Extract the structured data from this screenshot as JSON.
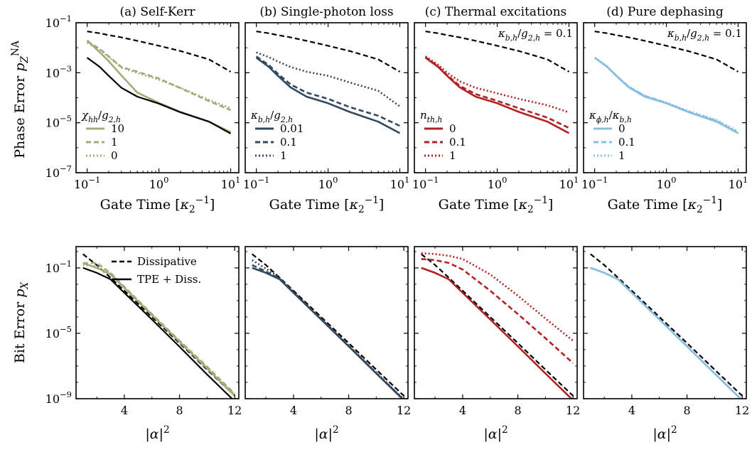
{
  "colors": {
    "black": "#000000",
    "self_kerr": "#a3ab78",
    "single_photon_loss": "#34495e",
    "thermal": "#b22222",
    "dephasing": "#88bfe0"
  },
  "row_labels": {
    "top_y": "Phase Error p_Z^NA",
    "top_x": "Gate Time [κ₂⁻¹]",
    "bottom_y": "Bit Error p_X",
    "bottom_x": "|α|²"
  },
  "chart_data": [
    {
      "type": "line",
      "title": "(a) Self-Kerr",
      "xlabel": "Gate Time [κ₂⁻¹]",
      "ylabel": "Phase Error p_Z^NA",
      "xscale": "log",
      "yscale": "log",
      "xlim": [
        0.07,
        13
      ],
      "ylim": [
        1e-07,
        0.1
      ],
      "xticks": [
        "10⁻¹",
        "10⁰",
        "10¹"
      ],
      "yticks": [
        "10⁻⁷",
        "10⁻⁵",
        "10⁻³",
        "10⁻¹"
      ],
      "legend_title": "χhh/g2,h",
      "legend_position": "lower-left",
      "x": [
        0.1,
        0.15,
        0.2,
        0.3,
        0.5,
        1,
        2,
        5,
        10
      ],
      "series": [
        {
          "name": "",
          "style": "dashed",
          "color": "black",
          "values": [
            0.045,
            0.038,
            0.032,
            0.026,
            0.019,
            0.012,
            0.0074,
            0.0034,
            0.0011
          ]
        },
        {
          "name": "10",
          "style": "solid",
          "color": "self_kerr",
          "values": [
            0.02,
            0.0065,
            0.0029,
            0.00078,
            0.00016,
            6.2e-05,
            2.7e-05,
            1.1e-05,
            4.2e-06
          ]
        },
        {
          "name": "1",
          "style": "dashed",
          "color": "self_kerr",
          "values": [
            0.018,
            0.009,
            0.0045,
            0.0017,
            0.0011,
            0.00059,
            0.00024,
            7.3e-05,
            3.2e-05
          ]
        },
        {
          "name": "0",
          "style": "dotted",
          "color": "self_kerr",
          "values": [
            0.016,
            0.0082,
            0.0042,
            0.0016,
            0.00098,
            0.00052,
            0.00025,
            8.2e-05,
            3.8e-05
          ]
        },
        {
          "name": "",
          "style": "solid",
          "color": "black",
          "values": [
            0.004,
            0.0017,
            0.00075,
            0.00025,
            0.00011,
            5.8e-05,
            2.6e-05,
            1.1e-05,
            3.7e-06
          ]
        }
      ]
    },
    {
      "type": "line",
      "title": "(b) Single-photon loss",
      "xlabel": "Gate Time [κ₂⁻¹]",
      "xscale": "log",
      "yscale": "log",
      "xlim": [
        0.07,
        13
      ],
      "ylim": [
        1e-07,
        0.1
      ],
      "xticks": [
        "10⁻¹",
        "10⁰",
        "10¹"
      ],
      "legend_title": "κb,h/g2,h",
      "legend_position": "lower-left",
      "x": [
        0.1,
        0.15,
        0.2,
        0.3,
        0.5,
        1,
        2,
        5,
        10
      ],
      "series": [
        {
          "name": "",
          "style": "dashed",
          "color": "black",
          "values": [
            0.045,
            0.038,
            0.032,
            0.026,
            0.019,
            0.012,
            0.0074,
            0.0034,
            0.0011
          ]
        },
        {
          "name": "0.01",
          "style": "solid",
          "color": "single_photon_loss",
          "values": [
            0.004,
            0.0017,
            0.00075,
            0.00026,
            0.00011,
            6e-05,
            2.7e-05,
            1.1e-05,
            3.8e-06
          ]
        },
        {
          "name": "0.1",
          "style": "dashed",
          "color": "single_photon_loss",
          "values": [
            0.0045,
            0.002,
            0.0009,
            0.00034,
            0.00016,
            9e-05,
            4.2e-05,
            1.9e-05,
            7.5e-06
          ]
        },
        {
          "name": "1",
          "style": "dotted",
          "color": "single_photon_loss",
          "values": [
            0.0065,
            0.0042,
            0.0028,
            0.0017,
            0.0011,
            0.00075,
            0.00041,
            0.00019,
            4.5e-05
          ]
        }
      ]
    },
    {
      "type": "line",
      "title": "(c) Thermal excitations",
      "xlabel": "Gate Time [κ₂⁻¹]",
      "xscale": "log",
      "yscale": "log",
      "xlim": [
        0.07,
        13
      ],
      "ylim": [
        1e-07,
        0.1
      ],
      "xticks": [
        "10⁻¹",
        "10⁰",
        "10¹"
      ],
      "annotation": "κb,h/g2,h = 0.1",
      "legend_title": "nth,h",
      "legend_position": "lower-left",
      "x": [
        0.1,
        0.15,
        0.2,
        0.3,
        0.5,
        1,
        2,
        5,
        10
      ],
      "series": [
        {
          "name": "",
          "style": "dashed",
          "color": "black",
          "values": [
            0.045,
            0.038,
            0.032,
            0.026,
            0.019,
            0.012,
            0.0074,
            0.0034,
            0.0011
          ]
        },
        {
          "name": "0",
          "style": "solid",
          "color": "thermal",
          "values": [
            0.004,
            0.0017,
            0.00075,
            0.00026,
            0.00011,
            6e-05,
            2.7e-05,
            1.1e-05,
            3.8e-06
          ]
        },
        {
          "name": "0.1",
          "style": "dashed",
          "color": "thermal",
          "values": [
            0.0042,
            0.0018,
            0.0008,
            0.0003,
            0.00014,
            7.5e-05,
            3.8e-05,
            1.6e-05,
            6.2e-06
          ]
        },
        {
          "name": "1",
          "style": "dotted",
          "color": "thermal",
          "values": [
            0.0045,
            0.0021,
            0.001,
            0.00045,
            0.00025,
            0.00015,
            9e-05,
            5e-05,
            2.6e-05
          ]
        }
      ]
    },
    {
      "type": "line",
      "title": "(d) Pure dephasing",
      "xlabel": "Gate Time [κ₂⁻¹]",
      "xscale": "log",
      "yscale": "log",
      "xlim": [
        0.07,
        13
      ],
      "ylim": [
        1e-07,
        0.1
      ],
      "xticks": [
        "10⁻¹",
        "10⁰",
        "10¹"
      ],
      "annotation": "κb,h/g2,h = 0.1",
      "legend_title": "κϕ,h/κb,h",
      "legend_position": "lower-left",
      "x": [
        0.1,
        0.15,
        0.2,
        0.3,
        0.5,
        1,
        2,
        5,
        10
      ],
      "series": [
        {
          "name": "",
          "style": "dashed",
          "color": "black",
          "values": [
            0.045,
            0.038,
            0.032,
            0.026,
            0.019,
            0.012,
            0.0074,
            0.0034,
            0.0011
          ]
        },
        {
          "name": "",
          "style": "solid",
          "color": "black",
          "values": [
            0.004,
            0.0017,
            0.00075,
            0.00026,
            0.00011,
            6e-05,
            2.7e-05,
            1.1e-05,
            3.8e-06
          ]
        },
        {
          "name": "0",
          "style": "solid",
          "color": "dephasing",
          "values": [
            0.004,
            0.0017,
            0.00075,
            0.00026,
            0.00011,
            6e-05,
            2.7e-05,
            1.1e-05,
            3.8e-06
          ]
        },
        {
          "name": "0.1",
          "style": "dashed",
          "color": "dephasing",
          "values": [
            0.004,
            0.0017,
            0.00076,
            0.00027,
            0.00012,
            6.2e-05,
            2.8e-05,
            1.2e-05,
            4e-06
          ]
        },
        {
          "name": "1",
          "style": "dotted",
          "color": "dephasing",
          "values": [
            0.0041,
            0.0018,
            0.00078,
            0.00028,
            0.00012,
            6.4e-05,
            3e-05,
            1.3e-05,
            4.5e-06
          ]
        }
      ]
    },
    {
      "type": "line",
      "title": "",
      "xlabel": "|α|²",
      "ylabel": "Bit Error p_X",
      "xscale": "linear",
      "yscale": "log",
      "xlim": [
        0.5,
        12.3
      ],
      "ylim": [
        1e-09,
        2
      ],
      "xticks": [
        "4",
        "8",
        "12"
      ],
      "yticks": [
        "10⁻⁹",
        "10⁻⁵",
        "10⁻¹"
      ],
      "legend_position": "top-right",
      "legend_entries": [
        {
          "name": "Dissipative",
          "style": "dashed",
          "color": "black"
        },
        {
          "name": "TPE + Diss.",
          "style": "solid",
          "color": "black"
        }
      ],
      "x": [
        1,
        2,
        3,
        4,
        6,
        8,
        10,
        12
      ],
      "series": [
        {
          "name": "Dissipative",
          "style": "dashed",
          "color": "black",
          "values": [
            0.7,
            0.15,
            0.025,
            0.004,
            0.0001,
            2.5e-06,
            6e-08,
            1.5e-09
          ]
        },
        {
          "name": "",
          "style": "solid",
          "color": "self_kerr",
          "values": [
            0.2,
            0.1,
            0.04,
            0.006,
            0.00013,
            3e-06,
            7e-08,
            1.5e-09
          ]
        },
        {
          "name": "",
          "style": "dashed",
          "color": "self_kerr",
          "values": [
            0.2,
            0.2,
            0.05,
            0.007,
            0.00015,
            3.5e-06,
            9e-08,
            2e-09
          ]
        },
        {
          "name": "",
          "style": "dotted",
          "color": "self_kerr",
          "values": [
            0.15,
            0.12,
            0.045,
            0.0065,
            0.00014,
            3.2e-06,
            8e-08,
            1.8e-09
          ]
        },
        {
          "name": "TPE + Diss.",
          "style": "solid",
          "color": "black",
          "values": [
            0.1,
            0.05,
            0.02,
            0.003,
            7e-05,
            1.5e-06,
            3e-08,
            7e-10
          ]
        }
      ]
    },
    {
      "type": "line",
      "title": "",
      "xlabel": "|α|²",
      "xscale": "linear",
      "yscale": "log",
      "xlim": [
        0.5,
        12.3
      ],
      "ylim": [
        1e-09,
        2
      ],
      "xticks": [
        "4",
        "8",
        "12"
      ],
      "x": [
        1,
        2,
        3,
        4,
        6,
        8,
        10,
        12
      ],
      "series": [
        {
          "name": "",
          "style": "dashed",
          "color": "black",
          "values": [
            0.7,
            0.15,
            0.025,
            0.004,
            0.0001,
            2.5e-06,
            6e-08,
            1.5e-09
          ]
        },
        {
          "name": "",
          "style": "solid",
          "color": "single_photon_loss",
          "values": [
            0.1,
            0.05,
            0.02,
            0.003,
            7e-05,
            1.6e-06,
            3.5e-08,
            8e-10
          ]
        },
        {
          "name": "",
          "style": "dashed",
          "color": "single_photon_loss",
          "values": [
            0.15,
            0.06,
            0.022,
            0.0032,
            7.5e-05,
            1.7e-06,
            3.7e-08,
            8.5e-10
          ]
        },
        {
          "name": "",
          "style": "dotted",
          "color": "single_photon_loss",
          "values": [
            0.3,
            0.09,
            0.025,
            0.0034,
            8e-05,
            1.8e-06,
            4e-08,
            9e-10
          ]
        }
      ]
    },
    {
      "type": "line",
      "title": "",
      "xlabel": "|α|²",
      "xscale": "linear",
      "yscale": "log",
      "xlim": [
        0.5,
        12.3
      ],
      "ylim": [
        1e-09,
        2
      ],
      "xticks": [
        "4",
        "8",
        "12"
      ],
      "x": [
        1,
        2,
        3,
        4,
        6,
        8,
        10,
        12
      ],
      "series": [
        {
          "name": "",
          "style": "dashed",
          "color": "black",
          "values": [
            0.7,
            0.15,
            0.025,
            0.004,
            0.0001,
            2.5e-06,
            6e-08,
            1.5e-09
          ]
        },
        {
          "name": "",
          "style": "solid",
          "color": "thermal",
          "values": [
            0.1,
            0.05,
            0.02,
            0.003,
            7e-05,
            1.6e-06,
            3.5e-08,
            8e-10
          ]
        },
        {
          "name": "",
          "style": "dashed",
          "color": "thermal",
          "values": [
            0.35,
            0.3,
            0.2,
            0.08,
            0.004,
            0.00015,
            5e-06,
            1.5e-07
          ]
        },
        {
          "name": "",
          "style": "dotted",
          "color": "thermal",
          "values": [
            0.8,
            0.7,
            0.55,
            0.35,
            0.04,
            0.002,
            8e-05,
            3.5e-06
          ]
        }
      ]
    },
    {
      "type": "line",
      "title": "",
      "xlabel": "|α|²",
      "xscale": "linear",
      "yscale": "log",
      "xlim": [
        0.5,
        12.3
      ],
      "ylim": [
        1e-09,
        2
      ],
      "xticks": [
        "4",
        "8",
        "12"
      ],
      "x": [
        1,
        2,
        3,
        4,
        6,
        8,
        10,
        12
      ],
      "series": [
        {
          "name": "",
          "style": "dashed",
          "color": "black",
          "values": [
            0.7,
            0.15,
            0.025,
            0.004,
            0.0001,
            2.5e-06,
            6e-08,
            1.5e-09
          ]
        },
        {
          "name": "",
          "style": "solid",
          "color": "black",
          "values": [
            0.1,
            0.05,
            0.02,
            0.003,
            7e-05,
            1.6e-06,
            3.5e-08,
            8e-10
          ]
        },
        {
          "name": "",
          "style": "solid",
          "color": "dephasing",
          "values": [
            0.1,
            0.05,
            0.02,
            0.003,
            7e-05,
            1.6e-06,
            3.5e-08,
            8e-10
          ]
        },
        {
          "name": "",
          "style": "dashed",
          "color": "dephasing",
          "values": [
            0.1,
            0.05,
            0.02,
            0.003,
            7e-05,
            1.6e-06,
            3.5e-08,
            8e-10
          ]
        },
        {
          "name": "",
          "style": "dotted",
          "color": "dephasing",
          "values": [
            0.1,
            0.05,
            0.02,
            0.003,
            7e-05,
            1.6e-06,
            3.5e-08,
            8e-10
          ]
        }
      ]
    }
  ]
}
